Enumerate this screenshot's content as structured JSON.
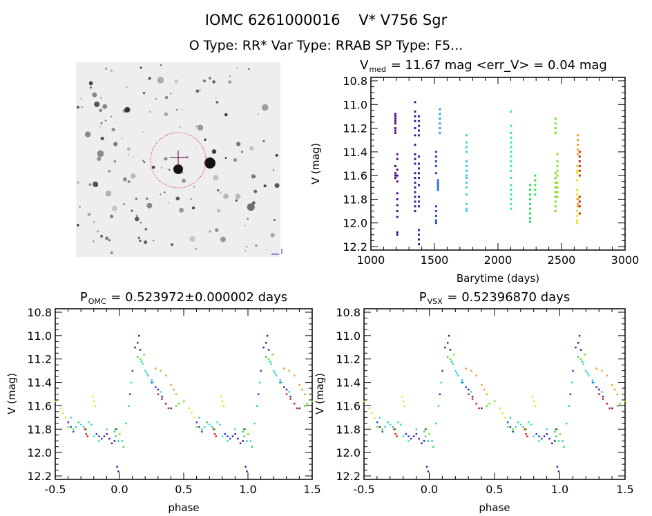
{
  "title_line1": "IOMC 6261000016    V* V756 Sgr",
  "title_line2": "O Type: RR*  Var Type: RRAB  SP Type: F5...",
  "image_panel": {
    "crosshair_color": "#7a2050",
    "circle_color": "#d03030"
  },
  "chart_data": [
    {
      "type": "scatter",
      "title_prefix": "V",
      "title_sub": "med",
      "title_rest": " = 11.67 mag <err_V> = 0.04 mag",
      "xlabel": "Barytime (days)",
      "ylabel": "V (mag)",
      "xlim": [
        1000,
        3000
      ],
      "ylim": [
        12.2,
        10.8
      ],
      "xticks": [
        "1000",
        "1500",
        "2000",
        "2500",
        "3000"
      ],
      "yticks": [
        "10.8",
        "11.0",
        "11.2",
        "11.4",
        "11.6",
        "11.8",
        "12.0",
        "12.2"
      ],
      "groups": [
        {
          "t": 1190,
          "color": "#4a0f80",
          "v": [
            11.08,
            11.1,
            11.12,
            11.14,
            11.16,
            11.2,
            11.22,
            11.24,
            11.52,
            11.58,
            11.6,
            11.62
          ]
        },
        {
          "t": 1205,
          "color": "#4a0f80",
          "v": [
            11.42,
            11.46,
            11.55,
            11.6,
            11.65,
            11.75,
            11.8,
            11.85,
            11.9,
            11.95,
            12.08,
            12.1
          ]
        },
        {
          "t": 1345,
          "color": "#3a1a9a",
          "v": [
            10.98,
            11.06,
            11.1,
            11.14,
            11.2,
            11.26,
            11.34,
            11.42,
            11.46,
            11.5,
            11.58,
            11.62,
            11.66,
            11.7,
            11.74,
            11.78,
            11.82,
            11.86,
            11.9
          ]
        },
        {
          "t": 1375,
          "color": "#3420b0",
          "v": [
            11.1,
            11.14,
            11.18,
            11.22,
            11.26,
            11.44,
            11.5,
            11.54,
            11.58,
            11.62,
            11.68,
            11.78,
            11.82,
            11.86,
            12.06,
            12.1,
            12.14,
            12.18
          ]
        },
        {
          "t": 1510,
          "color": "#1e3fd0",
          "v": [
            11.4,
            11.44,
            11.48,
            11.52,
            11.58,
            11.86,
            11.9,
            11.94,
            11.98,
            12.0
          ]
        },
        {
          "t": 1525,
          "color": "#2060d8",
          "v": [
            11.64,
            11.66,
            11.68,
            11.7,
            11.72
          ]
        },
        {
          "t": 1540,
          "color": "#2a9fe0",
          "v": [
            11.04,
            11.08,
            11.12,
            11.16,
            11.2,
            11.24
          ]
        },
        {
          "t": 1750,
          "color": "#38cbe6",
          "v": [
            11.26,
            11.32,
            11.36,
            11.4,
            11.48,
            11.52,
            11.56,
            11.6,
            11.62,
            11.66,
            11.7,
            11.76,
            11.84,
            11.88,
            11.9
          ]
        },
        {
          "t": 2100,
          "color": "#30e0d0",
          "v": [
            11.06,
            11.18,
            11.24,
            11.28,
            11.32,
            11.36,
            11.4,
            11.44,
            11.48,
            11.52,
            11.56,
            11.62,
            11.68,
            11.72,
            11.76,
            11.8,
            11.84,
            11.88
          ]
        },
        {
          "t": 2250,
          "color": "#22dd60",
          "v": [
            11.68,
            11.72,
            11.76,
            11.8,
            11.84,
            11.88,
            11.92,
            11.96,
            11.99
          ]
        },
        {
          "t": 2290,
          "color": "#40e040",
          "v": [
            11.6,
            11.64,
            11.68,
            11.72,
            11.76
          ]
        },
        {
          "t": 2450,
          "color": "#70e020",
          "v": [
            11.12,
            11.16,
            11.2,
            11.24,
            11.58,
            11.62,
            11.66,
            11.7,
            11.74,
            11.78,
            11.82,
            11.86,
            11.9
          ]
        },
        {
          "t": 2465,
          "color": "#90e020",
          "v": [
            11.42,
            11.48,
            11.52,
            11.56,
            11.6,
            11.66,
            11.7,
            11.74,
            11.78
          ]
        },
        {
          "t": 2620,
          "color": "#f0e020",
          "v": [
            11.52,
            11.56,
            11.58,
            11.64,
            11.72,
            11.76,
            11.8,
            11.9,
            11.94,
            11.98,
            12.0
          ]
        },
        {
          "t": 2625,
          "color": "#f0a020",
          "v": [
            11.26,
            11.3,
            11.34,
            11.38,
            11.42,
            11.8,
            11.84,
            11.86
          ]
        },
        {
          "t": 2640,
          "color": "#d02010",
          "v": [
            11.4,
            11.44,
            11.48,
            11.52,
            11.56,
            11.6,
            11.78,
            11.82,
            11.86,
            11.92
          ]
        }
      ]
    },
    {
      "type": "scatter",
      "title_prefix": "P",
      "title_sub": "OMC",
      "title_rest": " = 0.523972±0.000002 days",
      "xlabel": "phase",
      "ylabel": "V (mag)",
      "xlim": [
        -0.5,
        1.5
      ],
      "ylim": [
        12.2,
        10.8
      ],
      "xticks": [
        "-0.5",
        "0.0",
        "0.5",
        "1.0",
        "1.5"
      ],
      "yticks": [
        "10.8",
        "11.0",
        "11.2",
        "11.4",
        "11.6",
        "11.8",
        "12.0",
        "12.2"
      ]
    },
    {
      "type": "scatter",
      "title_prefix": "P",
      "title_sub": "VSX",
      "title_rest": " = 0.52396870 days",
      "xlabel": "phase",
      "ylabel": "V (mag)",
      "xlim": [
        -0.5,
        1.5
      ],
      "ylim": [
        12.2,
        10.8
      ],
      "xticks": [
        "-0.5",
        "0.0",
        "0.5",
        "1.0",
        "1.5"
      ],
      "yticks": [
        "10.8",
        "11.0",
        "11.2",
        "11.4",
        "11.6",
        "11.8",
        "12.0",
        "12.2"
      ]
    }
  ],
  "phase_series": [
    {
      "color": "#3a1a9a",
      "points": [
        [
          0.12,
          11.1
        ],
        [
          0.14,
          11.06
        ],
        [
          0.15,
          11.0
        ],
        [
          0.16,
          11.12
        ],
        [
          0.3,
          11.46
        ],
        [
          0.33,
          11.52
        ],
        [
          0.36,
          11.58
        ],
        [
          0.4,
          11.62
        ],
        [
          0.88,
          11.86
        ],
        [
          0.92,
          11.88
        ],
        [
          0.96,
          11.9
        ],
        [
          0.98,
          12.12
        ],
        [
          0.99,
          12.16
        ],
        [
          0.97,
          11.8
        ],
        [
          0.9,
          11.84
        ],
        [
          0.94,
          11.92
        ]
      ]
    },
    {
      "color": "#1e3fd0",
      "points": [
        [
          0.08,
          11.5
        ],
        [
          0.1,
          11.3
        ],
        [
          0.25,
          11.4
        ],
        [
          0.28,
          11.44
        ],
        [
          0.6,
          11.74
        ],
        [
          0.62,
          11.78
        ],
        [
          0.64,
          11.82
        ],
        [
          0.84,
          11.86
        ],
        [
          0.86,
          11.88
        ],
        [
          0.82,
          11.84
        ]
      ]
    },
    {
      "color": "#38cbe6",
      "points": [
        [
          0.05,
          11.75
        ],
        [
          0.07,
          11.6
        ],
        [
          0.09,
          11.4
        ],
        [
          0.2,
          11.3
        ],
        [
          0.22,
          11.34
        ],
        [
          0.25,
          11.38
        ],
        [
          0.62,
          11.7
        ],
        [
          0.66,
          11.78
        ],
        [
          0.7,
          11.76
        ],
        [
          0.9,
          11.8
        ],
        [
          0.02,
          11.9
        ]
      ]
    },
    {
      "color": "#30e0d0",
      "points": [
        [
          0.18,
          11.24
        ],
        [
          0.21,
          11.32
        ],
        [
          0.26,
          11.4
        ],
        [
          0.32,
          11.48
        ],
        [
          0.76,
          11.74
        ],
        [
          0.78,
          11.76
        ],
        [
          0.8,
          11.86
        ],
        [
          0.84,
          11.9
        ]
      ]
    },
    {
      "color": "#22dd60",
      "points": [
        [
          0.14,
          11.18
        ],
        [
          0.17,
          11.22
        ],
        [
          0.68,
          11.74
        ],
        [
          0.72,
          11.78
        ],
        [
          0.74,
          11.8
        ],
        [
          0.96,
          11.82
        ],
        [
          0.97,
          11.86
        ],
        [
          0.99,
          11.9
        ],
        [
          0.03,
          11.95
        ]
      ]
    },
    {
      "color": "#70e020",
      "points": [
        [
          0.16,
          11.2
        ],
        [
          0.19,
          11.16
        ],
        [
          0.44,
          11.6
        ],
        [
          0.46,
          11.58
        ],
        [
          0.5,
          11.56
        ],
        [
          0.6,
          11.78
        ],
        [
          0.64,
          11.8
        ],
        [
          0.98,
          11.8
        ],
        [
          0.0,
          11.84
        ]
      ]
    },
    {
      "color": "#f0e020",
      "points": [
        [
          0.79,
          11.52
        ],
        [
          0.8,
          11.56
        ],
        [
          0.81,
          11.6
        ],
        [
          0.54,
          11.62
        ],
        [
          0.56,
          11.66
        ],
        [
          0.58,
          11.7
        ]
      ]
    },
    {
      "color": "#f0a020",
      "points": [
        [
          0.28,
          11.28
        ],
        [
          0.32,
          11.3
        ],
        [
          0.36,
          11.34
        ],
        [
          0.4,
          11.42
        ],
        [
          0.42,
          11.46
        ],
        [
          0.44,
          11.5
        ]
      ]
    },
    {
      "color": "#d02010",
      "points": [
        [
          0.3,
          11.5
        ],
        [
          0.33,
          11.54
        ],
        [
          0.36,
          11.58
        ],
        [
          0.38,
          11.62
        ],
        [
          0.73,
          11.8
        ],
        [
          0.74,
          11.84
        ],
        [
          0.75,
          11.86
        ]
      ]
    }
  ]
}
